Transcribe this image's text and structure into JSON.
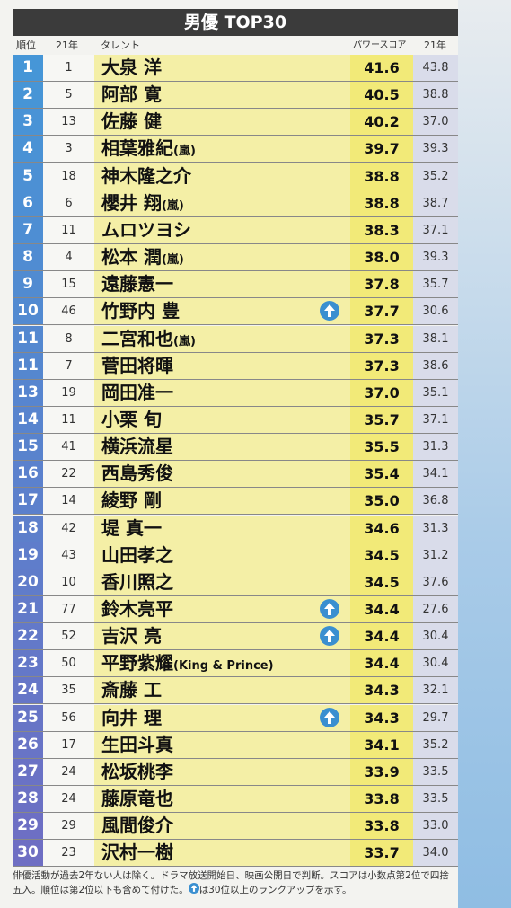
{
  "header": {
    "title": "男優 TOP30"
  },
  "columns": {
    "rank": "順位",
    "prev_rank": "21年",
    "name": "タレント",
    "score": "パワースコア",
    "prev_score": "21年"
  },
  "rows": [
    {
      "rank": "1",
      "prev_rank": "1",
      "name": "大泉 洋",
      "note": "",
      "score": "41.6",
      "prev_score": "43.8",
      "rank_up": false
    },
    {
      "rank": "2",
      "prev_rank": "5",
      "name": "阿部 寛",
      "note": "",
      "score": "40.5",
      "prev_score": "38.8",
      "rank_up": false
    },
    {
      "rank": "3",
      "prev_rank": "13",
      "name": "佐藤 健",
      "note": "",
      "score": "40.2",
      "prev_score": "37.0",
      "rank_up": false
    },
    {
      "rank": "4",
      "prev_rank": "3",
      "name": "相葉雅紀",
      "note": "(嵐)",
      "score": "39.7",
      "prev_score": "39.3",
      "rank_up": false
    },
    {
      "rank": "5",
      "prev_rank": "18",
      "name": "神木隆之介",
      "note": "",
      "score": "38.8",
      "prev_score": "35.2",
      "rank_up": false
    },
    {
      "rank": "6",
      "prev_rank": "6",
      "name": "櫻井 翔",
      "note": "(嵐)",
      "score": "38.8",
      "prev_score": "38.7",
      "rank_up": false
    },
    {
      "rank": "7",
      "prev_rank": "11",
      "name": "ムロツヨシ",
      "note": "",
      "score": "38.3",
      "prev_score": "37.1",
      "rank_up": false
    },
    {
      "rank": "8",
      "prev_rank": "4",
      "name": "松本 潤",
      "note": "(嵐)",
      "score": "38.0",
      "prev_score": "39.3",
      "rank_up": false
    },
    {
      "rank": "9",
      "prev_rank": "15",
      "name": "遠藤憲一",
      "note": "",
      "score": "37.8",
      "prev_score": "35.7",
      "rank_up": false
    },
    {
      "rank": "10",
      "prev_rank": "46",
      "name": "竹野内 豊",
      "note": "",
      "score": "37.7",
      "prev_score": "30.6",
      "rank_up": true
    },
    {
      "rank": "11",
      "prev_rank": "8",
      "name": "二宮和也",
      "note": "(嵐)",
      "score": "37.3",
      "prev_score": "38.1",
      "rank_up": false
    },
    {
      "rank": "11",
      "prev_rank": "7",
      "name": "菅田将暉",
      "note": "",
      "score": "37.3",
      "prev_score": "38.6",
      "rank_up": false
    },
    {
      "rank": "13",
      "prev_rank": "19",
      "name": "岡田准一",
      "note": "",
      "score": "37.0",
      "prev_score": "35.1",
      "rank_up": false
    },
    {
      "rank": "14",
      "prev_rank": "11",
      "name": "小栗 旬",
      "note": "",
      "score": "35.7",
      "prev_score": "37.1",
      "rank_up": false
    },
    {
      "rank": "15",
      "prev_rank": "41",
      "name": "横浜流星",
      "note": "",
      "score": "35.5",
      "prev_score": "31.3",
      "rank_up": false
    },
    {
      "rank": "16",
      "prev_rank": "22",
      "name": "西島秀俊",
      "note": "",
      "score": "35.4",
      "prev_score": "34.1",
      "rank_up": false
    },
    {
      "rank": "17",
      "prev_rank": "14",
      "name": "綾野 剛",
      "note": "",
      "score": "35.0",
      "prev_score": "36.8",
      "rank_up": false
    },
    {
      "rank": "18",
      "prev_rank": "42",
      "name": "堤 真一",
      "note": "",
      "score": "34.6",
      "prev_score": "31.3",
      "rank_up": false
    },
    {
      "rank": "19",
      "prev_rank": "43",
      "name": "山田孝之",
      "note": "",
      "score": "34.5",
      "prev_score": "31.2",
      "rank_up": false
    },
    {
      "rank": "20",
      "prev_rank": "10",
      "name": "香川照之",
      "note": "",
      "score": "34.5",
      "prev_score": "37.6",
      "rank_up": false
    },
    {
      "rank": "21",
      "prev_rank": "77",
      "name": "鈴木亮平",
      "note": "",
      "score": "34.4",
      "prev_score": "27.6",
      "rank_up": true
    },
    {
      "rank": "22",
      "prev_rank": "52",
      "name": "吉沢 亮",
      "note": "",
      "score": "34.4",
      "prev_score": "30.4",
      "rank_up": true
    },
    {
      "rank": "23",
      "prev_rank": "50",
      "name": "平野紫耀",
      "note": "(King & Prince)",
      "score": "34.4",
      "prev_score": "30.4",
      "rank_up": false
    },
    {
      "rank": "24",
      "prev_rank": "35",
      "name": "斎藤 工",
      "note": "",
      "score": "34.3",
      "prev_score": "32.1",
      "rank_up": false
    },
    {
      "rank": "25",
      "prev_rank": "56",
      "name": "向井 理",
      "note": "",
      "score": "34.3",
      "prev_score": "29.7",
      "rank_up": true
    },
    {
      "rank": "26",
      "prev_rank": "17",
      "name": "生田斗真",
      "note": "",
      "score": "34.1",
      "prev_score": "35.2",
      "rank_up": false
    },
    {
      "rank": "27",
      "prev_rank": "24",
      "name": "松坂桃李",
      "note": "",
      "score": "33.9",
      "prev_score": "33.5",
      "rank_up": false
    },
    {
      "rank": "28",
      "prev_rank": "24",
      "name": "藤原竜也",
      "note": "",
      "score": "33.8",
      "prev_score": "33.5",
      "rank_up": false
    },
    {
      "rank": "29",
      "prev_rank": "29",
      "name": "風間俊介",
      "note": "",
      "score": "33.8",
      "prev_score": "33.0",
      "rank_up": false
    },
    {
      "rank": "30",
      "prev_rank": "23",
      "name": "沢村一樹",
      "note": "",
      "score": "33.7",
      "prev_score": "34.0",
      "rank_up": false
    }
  ],
  "footer": {
    "note": "俳優活動が過去2年ない人は除く。ドラマ放送開始日、映画公開日で判断。スコアは小数点第2位で四捨五入。順位は第2位以下も含めて付けた。",
    "legend": "は30位以上のランクアップを示す。"
  }
}
